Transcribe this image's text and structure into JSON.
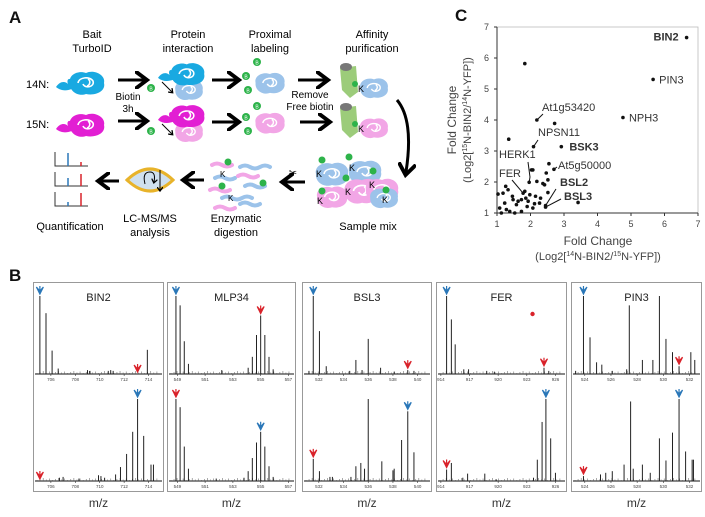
{
  "panel_labels": {
    "a": "A",
    "b": "B",
    "c": "C"
  },
  "panel_a": {
    "steps": {
      "bait": [
        "Bait",
        "TurboID"
      ],
      "interaction": [
        "Protein",
        "interaction"
      ],
      "labeling": [
        "Proximal",
        "labeling"
      ],
      "purification": [
        "Affinity",
        "purification"
      ],
      "sample_mix": [
        "Sample mix"
      ],
      "digestion": [
        "Enzymatic",
        "digestion"
      ],
      "lcms": [
        "LC-MS/MS",
        "analysis"
      ],
      "quantification": [
        "Quantification"
      ]
    },
    "row_labels": [
      "14N:",
      "15N:"
    ],
    "biotin_step": [
      "Biotin",
      "3h"
    ],
    "remove_step": [
      "Remove",
      "Free biotin"
    ],
    "biotin_marker": "B",
    "lysine_marker": "K",
    "colors": {
      "light_bait": "#19a9e1",
      "heavy_bait": "#e21fd3",
      "light_prey": "#9cc3ea",
      "heavy_prey": "#f2a6e6",
      "biotin": "#2db34a",
      "bead": "#9ccc7a",
      "lc_column": "#e8b32a"
    }
  },
  "panel_b": {
    "xlabel": "m/z",
    "colors": {
      "light_arrow": "#2a77b8",
      "heavy_arrow": "#d9222a"
    },
    "spectra": [
      {
        "name": "BIN2",
        "xrange": [
          704.7,
          715.1
        ],
        "ticks": [
          "706",
          "708",
          "710",
          "712",
          "714"
        ],
        "top": {
          "peaks": [
            [
              705.1,
              1.0
            ],
            [
              705.6,
              0.78
            ],
            [
              706.1,
              0.3
            ],
            [
              706.6,
              0.07
            ],
            [
              709.0,
              0.05
            ],
            [
              709.2,
              0.04
            ],
            [
              710.7,
              0.04
            ],
            [
              710.9,
              0.05
            ],
            [
              711.1,
              0.04
            ],
            [
              713.9,
              0.31
            ]
          ],
          "blue": 705.1,
          "red": 713.1
        },
        "bottom": {
          "peaks": [
            [
              706.7,
              0.04
            ],
            [
              707.0,
              0.05
            ],
            [
              708.3,
              0.03
            ],
            [
              709.9,
              0.07
            ],
            [
              710.1,
              0.06
            ],
            [
              710.4,
              0.04
            ],
            [
              711.3,
              0.08
            ],
            [
              711.7,
              0.17
            ],
            [
              712.2,
              0.33
            ],
            [
              712.7,
              0.6
            ],
            [
              713.1,
              1.0
            ],
            [
              713.6,
              0.55
            ],
            [
              714.2,
              0.2
            ],
            [
              714.4,
              0.2
            ]
          ],
          "blue": 713.1,
          "red": 705.1
        }
      },
      {
        "name": "MLP34",
        "xrange": [
          548.4,
          557.4
        ],
        "ticks": [
          "549",
          "551",
          "553",
          "555",
          "557"
        ],
        "top": {
          "peaks": [
            [
              548.9,
              1.0
            ],
            [
              549.2,
              0.88
            ],
            [
              549.5,
              0.42
            ],
            [
              549.8,
              0.13
            ],
            [
              552.2,
              0.05
            ],
            [
              554.1,
              0.08
            ],
            [
              554.4,
              0.22
            ],
            [
              554.7,
              0.5
            ],
            [
              555.0,
              0.75
            ],
            [
              555.3,
              0.5
            ],
            [
              555.6,
              0.22
            ],
            [
              555.9,
              0.06
            ]
          ],
          "blue": 548.9,
          "red": 555.0
        },
        "bottom": {
          "peaks": [
            [
              548.9,
              1.0
            ],
            [
              549.2,
              0.9
            ],
            [
              549.5,
              0.42
            ],
            [
              549.8,
              0.15
            ],
            [
              551.8,
              0.03
            ],
            [
              553.8,
              0.04
            ],
            [
              554.1,
              0.12
            ],
            [
              554.4,
              0.28
            ],
            [
              554.7,
              0.47
            ],
            [
              555.0,
              0.6
            ],
            [
              555.3,
              0.42
            ],
            [
              555.6,
              0.18
            ],
            [
              555.9,
              0.05
            ]
          ],
          "blue": 555.0,
          "red": 548.9
        }
      },
      {
        "name": "BSL3",
        "xrange": [
          530.8,
          541.0
        ],
        "ticks": [
          "532",
          "534",
          "536",
          "538",
          "540"
        ],
        "top": {
          "peaks": [
            [
              531.2,
              0.04
            ],
            [
              531.55,
              1.0
            ],
            [
              532.05,
              0.55
            ],
            [
              532.6,
              0.1
            ],
            [
              534.5,
              0.04
            ],
            [
              535.0,
              0.18
            ],
            [
              535.5,
              0.05
            ],
            [
              536.0,
              0.45
            ],
            [
              537.0,
              0.08
            ],
            [
              538.1,
              0.03
            ],
            [
              539.2,
              0.05
            ],
            [
              539.7,
              0.04
            ]
          ],
          "blue": 531.55,
          "red": 539.2
        },
        "bottom": {
          "peaks": [
            [
              531.55,
              0.27
            ],
            [
              532.05,
              0.12
            ],
            [
              532.9,
              0.05
            ],
            [
              533.1,
              0.05
            ],
            [
              534.6,
              0.05
            ],
            [
              535.0,
              0.18
            ],
            [
              535.4,
              0.22
            ],
            [
              535.7,
              0.15
            ],
            [
              536.0,
              1.0
            ],
            [
              537.1,
              0.24
            ],
            [
              538.0,
              0.13
            ],
            [
              538.1,
              0.15
            ],
            [
              538.7,
              0.5
            ],
            [
              539.2,
              0.85
            ],
            [
              539.7,
              0.35
            ]
          ],
          "blue": 539.2,
          "red": 531.55
        }
      },
      {
        "name": "FER",
        "xrange": [
          913.7,
          927.0
        ],
        "ticks": [
          "914",
          "917",
          "920",
          "923",
          "926"
        ],
        "top": {
          "peaks": [
            [
              914.6,
              1.0
            ],
            [
              915.1,
              0.7
            ],
            [
              915.5,
              0.38
            ],
            [
              916.4,
              0.06
            ],
            [
              916.9,
              0.06
            ],
            [
              918.8,
              0.04
            ],
            [
              919.6,
              0.03
            ],
            [
              924.8,
              0.08
            ],
            [
              925.3,
              0.04
            ]
          ],
          "blue": 914.6,
          "red": 924.8,
          "dot": 923.6
        },
        "bottom": {
          "peaks": [
            [
              914.6,
              0.14
            ],
            [
              915.1,
              0.22
            ],
            [
              916.3,
              0.04
            ],
            [
              916.8,
              0.09
            ],
            [
              918.6,
              0.09
            ],
            [
              919.8,
              0.02
            ],
            [
              923.7,
              0.04
            ],
            [
              924.1,
              0.26
            ],
            [
              924.6,
              0.72
            ],
            [
              925.0,
              1.0
            ],
            [
              925.5,
              0.52
            ],
            [
              926.0,
              0.1
            ]
          ],
          "blue": 925.0,
          "red": 914.6
        }
      },
      {
        "name": "PIN3",
        "xrange": [
          523.1,
          532.8
        ],
        "ticks": [
          "524",
          "526",
          "528",
          "530",
          "532"
        ],
        "top": {
          "peaks": [
            [
              523.3,
              0.04
            ],
            [
              523.9,
              1.0
            ],
            [
              524.4,
              0.47
            ],
            [
              524.9,
              0.15
            ],
            [
              525.3,
              0.12
            ],
            [
              526.1,
              0.04
            ],
            [
              527.2,
              0.06
            ],
            [
              527.4,
              0.88
            ],
            [
              528.4,
              0.18
            ],
            [
              529.2,
              0.18
            ],
            [
              529.7,
              1.0
            ],
            [
              530.2,
              0.45
            ],
            [
              530.7,
              0.28
            ],
            [
              531.2,
              0.1
            ],
            [
              532.1,
              0.28
            ],
            [
              532.4,
              0.18
            ]
          ],
          "blue": 523.9,
          "red": 531.2
        },
        "bottom": {
          "peaks": [
            [
              523.9,
              0.06
            ],
            [
              525.2,
              0.08
            ],
            [
              525.6,
              0.1
            ],
            [
              526.1,
              0.12
            ],
            [
              527.0,
              0.2
            ],
            [
              527.5,
              0.97
            ],
            [
              527.7,
              0.15
            ],
            [
              528.4,
              0.2
            ],
            [
              529.0,
              0.1
            ],
            [
              529.7,
              0.52
            ],
            [
              530.2,
              0.25
            ],
            [
              530.7,
              0.59
            ],
            [
              531.2,
              1.0
            ],
            [
              531.7,
              0.36
            ],
            [
              532.2,
              0.26
            ],
            [
              532.3,
              0.26
            ]
          ],
          "blue": 531.2,
          "red": 523.9
        }
      }
    ]
  },
  "chart_data": {
    "type": "scatter",
    "xlabel": [
      "Fold Change",
      "(Log2[",
      "14",
      "N-BIN2/",
      "15",
      "N-YFP])"
    ],
    "ylabel": [
      "Fold Change",
      "(Log2[",
      "15",
      "N-BIN2/",
      "14",
      "N-YFP])"
    ],
    "xlim": [
      1,
      7
    ],
    "ylim": [
      1,
      7
    ],
    "xticks": [
      "1",
      "2",
      "3",
      "4",
      "5",
      "6",
      "7"
    ],
    "yticks": [
      "1",
      "2",
      "3",
      "4",
      "5",
      "6",
      "7"
    ],
    "grid": false,
    "points": [
      {
        "x": 6.66,
        "y": 6.66,
        "label": "BIN2",
        "bold": true
      },
      {
        "x": 5.66,
        "y": 5.31,
        "label": "PIN3",
        "bold": false
      },
      {
        "x": 4.76,
        "y": 4.08,
        "label": "NPH3",
        "bold": false
      },
      {
        "x": 2.19,
        "y": 4.0,
        "label": "At1g53420",
        "bold": false
      },
      {
        "x": 2.09,
        "y": 3.14,
        "label": "NPSN11",
        "bold": false
      },
      {
        "x": 2.92,
        "y": 3.14,
        "label": "BSK3",
        "bold": true
      },
      {
        "x": 1.96,
        "y": 1.99,
        "label": "HERK1",
        "bold": false
      },
      {
        "x": 2.7,
        "y": 2.41,
        "label": "At5g50000",
        "bold": false
      },
      {
        "x": 1.78,
        "y": 1.64,
        "label": "FER",
        "bold": false
      },
      {
        "x": 2.45,
        "y": 1.24,
        "label": "BSL2",
        "bold": true
      },
      {
        "x": 2.45,
        "y": 1.19,
        "label": "BSL3",
        "bold": true
      },
      {
        "x": 1.83,
        "y": 5.82
      },
      {
        "x": 2.72,
        "y": 3.89
      },
      {
        "x": 1.35,
        "y": 3.38
      },
      {
        "x": 2.55,
        "y": 2.59
      },
      {
        "x": 2.03,
        "y": 2.39
      },
      {
        "x": 2.07,
        "y": 2.39
      },
      {
        "x": 2.47,
        "y": 2.29
      },
      {
        "x": 2.19,
        "y": 2.02
      },
      {
        "x": 2.52,
        "y": 2.07
      },
      {
        "x": 2.42,
        "y": 1.91
      },
      {
        "x": 2.37,
        "y": 1.95
      },
      {
        "x": 3.42,
        "y": 1.34
      },
      {
        "x": 1.03,
        "y": 1.61
      },
      {
        "x": 1.08,
        "y": 1.16
      },
      {
        "x": 1.23,
        "y": 1.32
      },
      {
        "x": 1.18,
        "y": 1.64
      },
      {
        "x": 1.33,
        "y": 1.75
      },
      {
        "x": 1.28,
        "y": 1.11
      },
      {
        "x": 1.13,
        "y": 1.0
      },
      {
        "x": 1.38,
        "y": 1.05
      },
      {
        "x": 1.48,
        "y": 1.43
      },
      {
        "x": 1.46,
        "y": 1.54
      },
      {
        "x": 1.58,
        "y": 1.27
      },
      {
        "x": 1.63,
        "y": 1.38
      },
      {
        "x": 1.53,
        "y": 1.0
      },
      {
        "x": 1.73,
        "y": 1.43
      },
      {
        "x": 1.83,
        "y": 1.7
      },
      {
        "x": 1.86,
        "y": 1.48
      },
      {
        "x": 1.93,
        "y": 1.38
      },
      {
        "x": 1.98,
        "y": 1.59
      },
      {
        "x": 1.9,
        "y": 1.21
      },
      {
        "x": 2.07,
        "y": 1.16
      },
      {
        "x": 2.15,
        "y": 1.54
      },
      {
        "x": 2.12,
        "y": 1.3
      },
      {
        "x": 2.27,
        "y": 1.32
      },
      {
        "x": 2.3,
        "y": 1.48
      },
      {
        "x": 2.52,
        "y": 1.66
      },
      {
        "x": 1.26,
        "y": 1.86
      },
      {
        "x": 1.73,
        "y": 1.05
      }
    ]
  }
}
